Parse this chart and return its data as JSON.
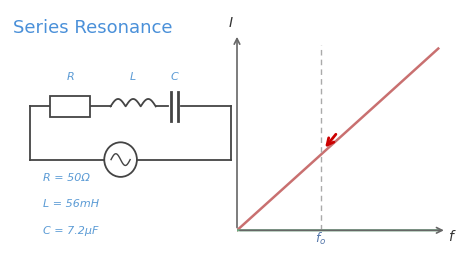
{
  "title": "Series Resonance",
  "title_color": "#4a90d9",
  "title_fontsize": 13,
  "bg_color": "#ffffff",
  "params_text": [
    "R = 50Ω",
    "L = 56mH",
    "C = 7.2μF"
  ],
  "params_color": "#5b9bd5",
  "f0": 5.0,
  "curve1_color": "#c97070",
  "curve2_color": "#6aaa80",
  "arrow_color": "#cc0000",
  "dashed_color": "#aaaaaa",
  "axis_color": "#666666",
  "label_color": "#5577aa"
}
